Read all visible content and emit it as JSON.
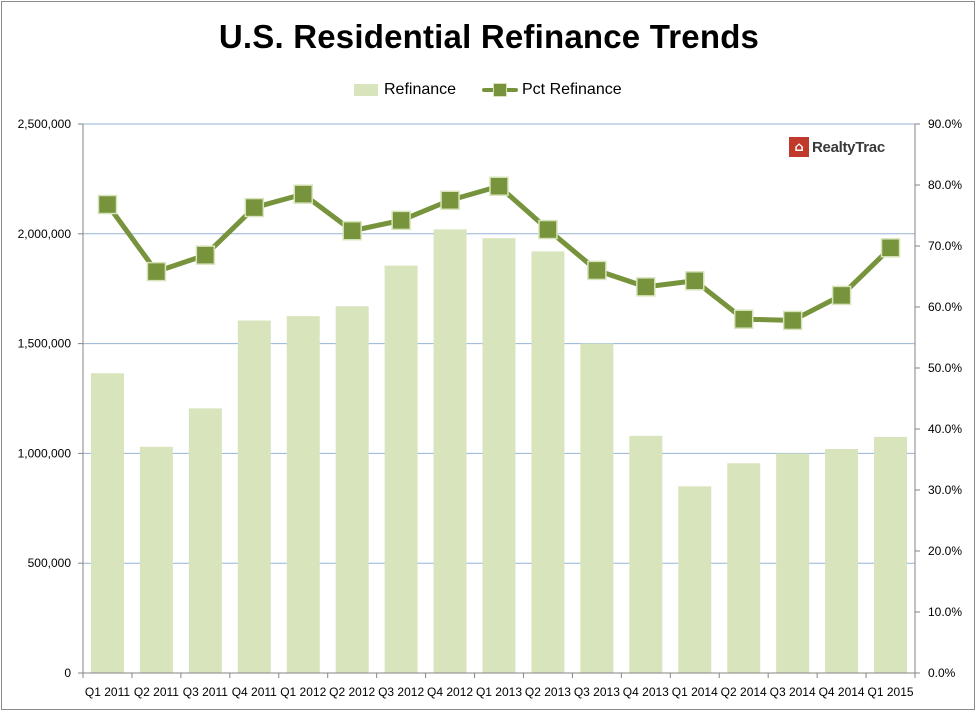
{
  "chart_data": {
    "type": "bar",
    "title": "U.S. Residential Refinance Trends",
    "categories": [
      "Q1 2011",
      "Q2 2011",
      "Q3 2011",
      "Q4 2011",
      "Q1 2012",
      "Q2 2012",
      "Q3 2012",
      "Q4 2012",
      "Q1 2013",
      "Q2 2013",
      "Q3 2013",
      "Q4 2013",
      "Q1 2014",
      "Q2 2014",
      "Q3 2014",
      "Q4 2014",
      "Q1 2015"
    ],
    "series": [
      {
        "name": "Refinance",
        "type": "bar",
        "axis": "left",
        "color": "#d8e4bc",
        "values": [
          1365000,
          1030000,
          1205000,
          1605000,
          1625000,
          1670000,
          1855000,
          2020000,
          1980000,
          1920000,
          1500000,
          1080000,
          850000,
          955000,
          1000000,
          1020000,
          1075000
        ]
      },
      {
        "name": "Pct Refinance",
        "type": "line",
        "axis": "right",
        "color": "#77933c",
        "values": [
          0.768,
          0.658,
          0.685,
          0.763,
          0.785,
          0.725,
          0.742,
          0.775,
          0.798,
          0.727,
          0.66,
          0.633,
          0.643,
          0.58,
          0.578,
          0.619,
          0.697
        ]
      }
    ],
    "y_left": {
      "ylim": [
        0,
        2500000
      ],
      "ticks": [
        0,
        500000,
        1000000,
        1500000,
        2000000,
        2500000
      ],
      "tick_labels": [
        "0",
        "500,000",
        "1,000,000",
        "1,500,000",
        "2,000,000",
        "2,500,000"
      ]
    },
    "y_right": {
      "ylim": [
        0,
        0.9
      ],
      "ticks": [
        0,
        0.1,
        0.2,
        0.3,
        0.4,
        0.5,
        0.6,
        0.7,
        0.8,
        0.9
      ],
      "tick_labels": [
        "0.0%",
        "10.0%",
        "20.0%",
        "30.0%",
        "40.0%",
        "50.0%",
        "60.0%",
        "70.0%",
        "80.0%",
        "90.0%"
      ]
    },
    "grid": true,
    "legend_position": "top-center"
  },
  "legend": {
    "bar_label": "Refinance",
    "line_label": "Pct Refinance"
  },
  "logo": {
    "text": "RealtyTrac",
    "icon": "house-icon"
  }
}
